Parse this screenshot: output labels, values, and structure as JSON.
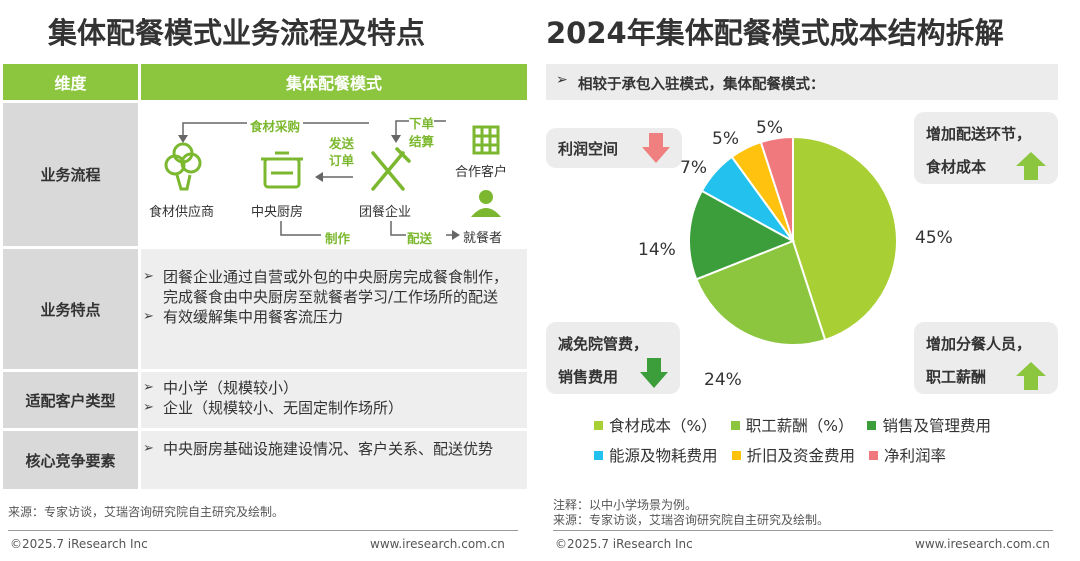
{
  "left": {
    "title": "集体配餐模式业务流程及特点",
    "table": {
      "header_col1": "维度",
      "header_col2": "集体配餐模式",
      "rows": {
        "process": {
          "label": "业务流程"
        },
        "features": {
          "label": "业务特点",
          "bullets": [
            "团餐企业通过自营或外包的中央厨房完成餐食制作，完成餐食由中央厨房至就餐者学习/工作场所的配送",
            "有效缓解集中用餐客流压力"
          ]
        },
        "clients": {
          "label": "适配客户类型",
          "bullets": [
            "中小学（规模较小）",
            "企业（规模较小、无固定制作场所）"
          ]
        },
        "competition": {
          "label": "核心竞争要素",
          "bullets": [
            "中央厨房基础设施建设情况、客户关系、配送优势"
          ]
        }
      }
    },
    "flow": {
      "supplier": "食材供应商",
      "kitchen": "中央厨房",
      "enterprise": "团餐企业",
      "client": "合作客户",
      "diner": "就餐者",
      "procurement": "食材采购",
      "order1": "发送",
      "order2": "订单",
      "place1": "下单",
      "place2": "结算",
      "make": "制作",
      "deliver": "配送"
    },
    "source": "来源：专家访谈，艾瑞咨询研究院自主研究及绘制。",
    "copyright": "©2025.7 iResearch Inc",
    "website": "www.iresearch.com.cn"
  },
  "right": {
    "title": "2024年集体配餐模式成本结构拆解",
    "subtitle": "相较于承包入驻模式，集体配餐模式：",
    "callouts": {
      "profit": "利润空间",
      "top_right_1": "增加配送环节，",
      "top_right_2": "食材成本",
      "bottom_left_1": "减免院管费，",
      "bottom_left_2": "销售费用",
      "bottom_right_1": "增加分餐人员，",
      "bottom_right_2": "职工薪酬"
    },
    "note": "注释：以中小学场景为例。",
    "source": "来源：专家访谈，艾瑞咨询研究院自主研究及绘制。",
    "copyright": "©2025.7 iResearch Inc",
    "website": "www.iresearch.com.cn",
    "colors": {
      "up": "#8cc63f",
      "down": "#f08080"
    }
  },
  "chart_data": {
    "type": "pie",
    "title": "2024年集体配餐模式成本结构拆解",
    "labels": [
      "食材成本（%）",
      "职工薪酬（%）",
      "销售及管理费用",
      "能源及物耗费用",
      "折旧及资金费用",
      "净利润率"
    ],
    "values": [
      45,
      24,
      14,
      7,
      5,
      5
    ],
    "value_labels": [
      "45%",
      "24%",
      "14%",
      "7%",
      "5%",
      "5%"
    ],
    "colors": [
      "#a8cf34",
      "#8cc63f",
      "#3b9e3b",
      "#22c1ee",
      "#ffc20e",
      "#f0797e"
    ],
    "legend_position": "bottom"
  }
}
